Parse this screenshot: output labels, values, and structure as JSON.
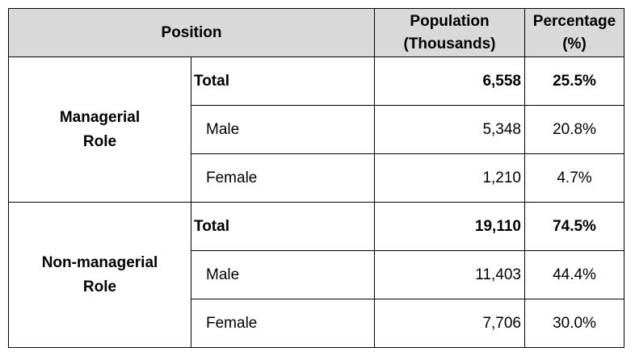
{
  "header": {
    "position": "Position",
    "population": [
      "Population",
      "(Thousands)"
    ],
    "percentage": [
      "Percentage",
      "(%)"
    ]
  },
  "groups": [
    {
      "label": [
        "Managerial",
        "Role"
      ],
      "rows": [
        {
          "name": "Total",
          "population": "6,558",
          "percentage": "25.5%"
        },
        {
          "name": "Male",
          "population": "5,348",
          "percentage": "20.8%"
        },
        {
          "name": "Female",
          "population": "1,210",
          "percentage": "4.7%"
        }
      ]
    },
    {
      "label": [
        "Non-managerial",
        "Role"
      ],
      "rows": [
        {
          "name": "Total",
          "population": "19,110",
          "percentage": "74.5%"
        },
        {
          "name": "Male",
          "population": "11,403",
          "percentage": "44.4%"
        },
        {
          "name": "Female",
          "population": "7,706",
          "percentage": "30.0%"
        }
      ]
    }
  ]
}
